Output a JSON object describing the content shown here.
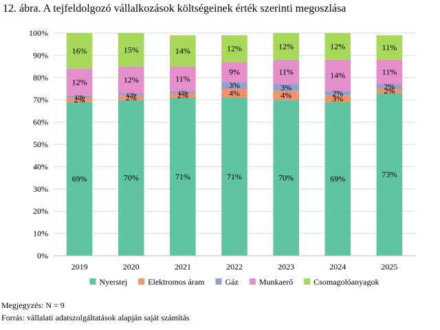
{
  "figure": {
    "title": "12. ábra. A tejfeldolgozó vállalkozások költségeinek érték szerinti megoszlása",
    "note": "Megjegyzés: N = 9",
    "source": "Forrás: vállalati adatszolgáltatások alapján saját számítás"
  },
  "chart_data": {
    "type": "bar",
    "stacked": true,
    "categories": [
      "2019",
      "2020",
      "2021",
      "2022",
      "2023",
      "2024",
      "2025"
    ],
    "series": [
      {
        "name": "Nyerstej",
        "color": "#5fc5a1",
        "values": [
          69,
          70,
          71,
          71,
          70,
          69,
          73
        ],
        "labels": [
          "69%",
          "70%",
          "71%",
          "71%",
          "70%",
          "69%",
          "73%"
        ]
      },
      {
        "name": "Elektromos áram",
        "color": "#f0936b",
        "values": [
          2,
          2,
          2,
          4,
          4,
          3,
          2
        ],
        "labels": [
          "2%",
          "2%",
          "2%",
          "4%",
          "4%",
          "3%",
          "2%"
        ]
      },
      {
        "name": "Gáz",
        "color": "#8fa1cf",
        "values": [
          1,
          1,
          1,
          3,
          3,
          2,
          2
        ],
        "labels": [
          "1%",
          "1%",
          "1%",
          "3%",
          "3%",
          "2%",
          "2%"
        ]
      },
      {
        "name": "Munkaerő",
        "color": "#e48ecb",
        "values": [
          12,
          12,
          11,
          9,
          11,
          14,
          11
        ],
        "labels": [
          "12%",
          "12%",
          "11%",
          "9%",
          "11%",
          "14%",
          "11%"
        ]
      },
      {
        "name": "Csomagolóanyagok",
        "color": "#a8d85a",
        "values": [
          16,
          15,
          14,
          12,
          12,
          12,
          11
        ],
        "labels": [
          "16%",
          "15%",
          "14%",
          "12%",
          "12%",
          "12%",
          "11%"
        ]
      }
    ],
    "yticks": [
      "0%",
      "10%",
      "20%",
      "30%",
      "40%",
      "50%",
      "60%",
      "70%",
      "80%",
      "90%",
      "100%"
    ],
    "ylim": [
      0,
      100
    ],
    "grid": true,
    "legend": "bottom"
  }
}
